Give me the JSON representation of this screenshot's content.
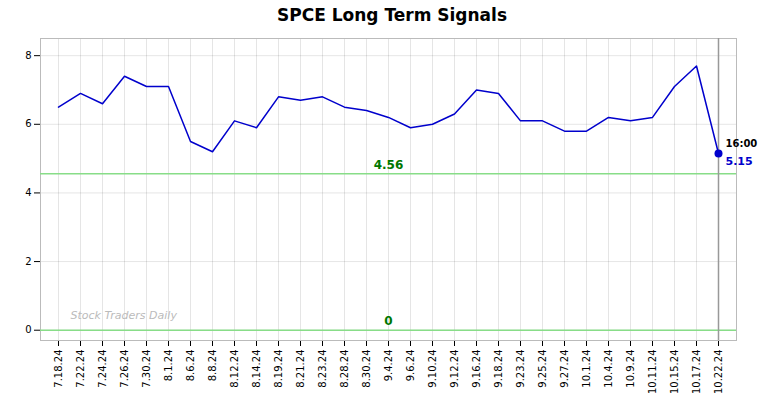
{
  "chart_data": {
    "type": "line",
    "title": "SPCE Long Term Signals",
    "categories": [
      "7.18.24",
      "7.22.24",
      "7.24.24",
      "7.26.24",
      "7.30.24",
      "8.1.24",
      "8.6.24",
      "8.8.24",
      "8.12.24",
      "8.14.24",
      "8.19.24",
      "8.21.24",
      "8.23.24",
      "8.28.24",
      "8.30.24",
      "9.4.24",
      "9.6.24",
      "9.10.24",
      "9.12.24",
      "9.16.24",
      "9.18.24",
      "9.23.24",
      "9.25.24",
      "9.27.24",
      "10.1.24",
      "10.4.24",
      "10.9.24",
      "10.11.24",
      "10.15.24",
      "10.17.24",
      "10.22.24"
    ],
    "values": [
      6.5,
      6.9,
      6.6,
      7.4,
      7.1,
      7.1,
      5.5,
      5.2,
      6.1,
      5.9,
      6.8,
      6.7,
      6.8,
      6.5,
      6.4,
      6.2,
      5.9,
      6.0,
      6.3,
      7.0,
      6.9,
      6.1,
      6.1,
      5.8,
      5.8,
      6.2,
      6.1,
      6.2,
      7.1,
      7.7,
      5.15
    ],
    "color": "#0000cc",
    "ylim": [
      -0.3,
      8.5
    ],
    "yticks": [
      0,
      2,
      4,
      6,
      8
    ],
    "grid": true,
    "hlines": [
      {
        "y": 4.56,
        "label": "4.56",
        "color": "#88dd88",
        "label_color": "#007700"
      },
      {
        "y": 0,
        "label": "0",
        "color": "#88dd88",
        "label_color": "#007700"
      }
    ],
    "last_point": {
      "time_label": "16:00",
      "price_label": "5.15",
      "value": 5.15,
      "color": "#0000cc",
      "time_label_color": "#000000",
      "vline_color": "#999999"
    },
    "watermark": {
      "text": "Stock Traders Daily",
      "color": "#bbbbbb"
    }
  }
}
